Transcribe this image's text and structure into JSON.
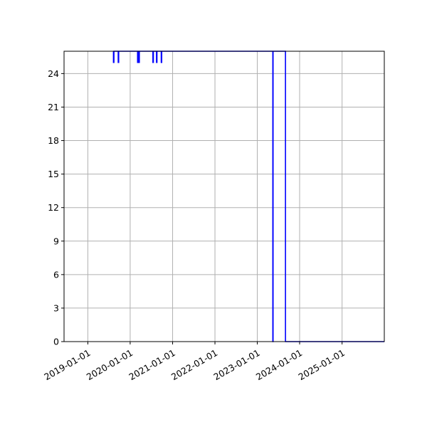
{
  "chart_data": {
    "type": "line",
    "title": "",
    "xlabel": "",
    "ylabel": "",
    "grid": true,
    "legend": "none",
    "colors": {
      "series": "#0000ff",
      "grid": "#b0b0b0",
      "axes": "#000000"
    },
    "xlim": [
      "2018-06-10",
      "2025-12-31"
    ],
    "ylim": [
      0,
      26
    ],
    "x_ticks": [
      "2019-01-01",
      "2020-01-01",
      "2021-01-01",
      "2022-01-01",
      "2023-01-01",
      "2024-01-01",
      "2025-01-01"
    ],
    "y_ticks": [
      0,
      3,
      6,
      9,
      12,
      15,
      18,
      21,
      24
    ],
    "series": [
      {
        "color": "#0000ff",
        "points": [
          [
            "2019-08-10",
            26
          ],
          [
            "2019-08-10",
            25
          ],
          [
            "2019-08-14",
            25
          ],
          [
            "2019-08-14",
            26
          ],
          [
            "2019-09-20",
            26
          ],
          [
            "2019-09-20",
            25
          ],
          [
            "2019-09-24",
            25
          ],
          [
            "2019-09-24",
            26
          ],
          [
            "2020-03-05",
            26
          ],
          [
            "2020-03-05",
            25
          ],
          [
            "2020-03-09",
            25
          ],
          [
            "2020-03-09",
            26
          ],
          [
            "2020-03-16",
            26
          ],
          [
            "2020-03-16",
            25
          ],
          [
            "2020-03-20",
            25
          ],
          [
            "2020-03-20",
            26
          ],
          [
            "2020-07-15",
            26
          ],
          [
            "2020-07-15",
            25
          ],
          [
            "2020-07-19",
            25
          ],
          [
            "2020-07-19",
            26
          ],
          [
            "2020-08-15",
            26
          ],
          [
            "2020-08-15",
            25
          ],
          [
            "2020-08-19",
            25
          ],
          [
            "2020-08-19",
            26
          ],
          [
            "2020-09-25",
            26
          ],
          [
            "2020-09-25",
            25
          ],
          [
            "2020-09-29",
            25
          ],
          [
            "2020-09-29",
            26
          ],
          [
            "2023-05-15",
            26
          ],
          [
            "2023-05-15",
            0
          ],
          [
            "2023-05-17",
            0
          ],
          [
            "2023-05-17",
            26
          ],
          [
            "2023-09-01",
            26
          ],
          [
            "2023-09-01",
            0
          ],
          [
            "2025-12-31",
            0
          ]
        ]
      }
    ]
  }
}
